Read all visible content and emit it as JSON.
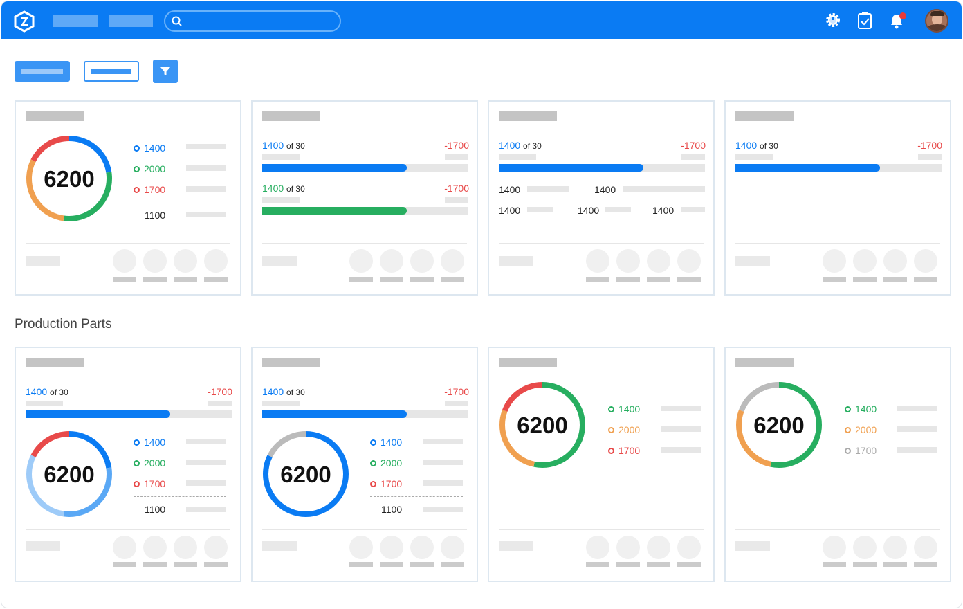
{
  "section": {
    "title": "Production Parts"
  },
  "colors": {
    "blue": "#0a7bf3",
    "green": "#27ae60",
    "red": "#e84a4a",
    "orange": "#f0a050",
    "gray": "#bbbbbb"
  },
  "icons": [
    "logo-icon",
    "search-icon",
    "gear-icon",
    "clipboard-check-icon",
    "bell-icon",
    "filter-icon"
  ],
  "card1": {
    "total": "6200",
    "legend": [
      "1400",
      "2000",
      "1700"
    ],
    "sum": "1100"
  },
  "card2": {
    "value1": "1400",
    "of1": "of 30",
    "delta1": "-1700",
    "value2": "1400",
    "of2": "of 30",
    "delta2": "-1700",
    "progress1": 0.7,
    "progress2": 0.7
  },
  "card3": {
    "value": "1400",
    "of": "of 30",
    "delta": "-1700",
    "progress": 0.7,
    "stats": [
      "1400",
      "1400",
      "1400",
      "1400",
      "1400"
    ]
  },
  "card4": {
    "value": "1400",
    "of": "of 30",
    "delta": "-1700",
    "progress": 0.7
  },
  "card5": {
    "value": "1400",
    "of": "of 30",
    "delta": "-1700",
    "progress": 0.7,
    "total": "6200",
    "legend": [
      "1400",
      "2000",
      "1700"
    ],
    "sum": "1100"
  },
  "card6": {
    "value": "1400",
    "of": "of 30",
    "delta": "-1700",
    "progress": 0.7,
    "total": "6200",
    "legend": [
      "1400",
      "2000",
      "1700"
    ],
    "sum": "1100"
  },
  "card7": {
    "total": "6200",
    "legend": [
      "1400",
      "2000",
      "1700"
    ]
  },
  "card8": {
    "total": "6200",
    "legend": [
      "1400",
      "2000",
      "1700"
    ]
  }
}
